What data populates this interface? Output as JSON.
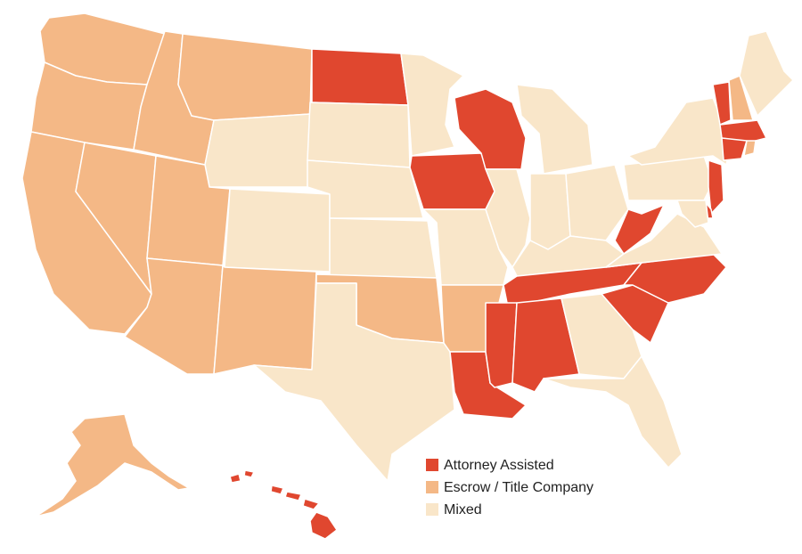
{
  "legend": [
    {
      "label": "Attorney Assisted",
      "color": "#e0472f"
    },
    {
      "label": "Escrow / Title Company",
      "color": "#f4b886"
    },
    {
      "label": "Mixed",
      "color": "#f9e6c9"
    }
  ]
}
